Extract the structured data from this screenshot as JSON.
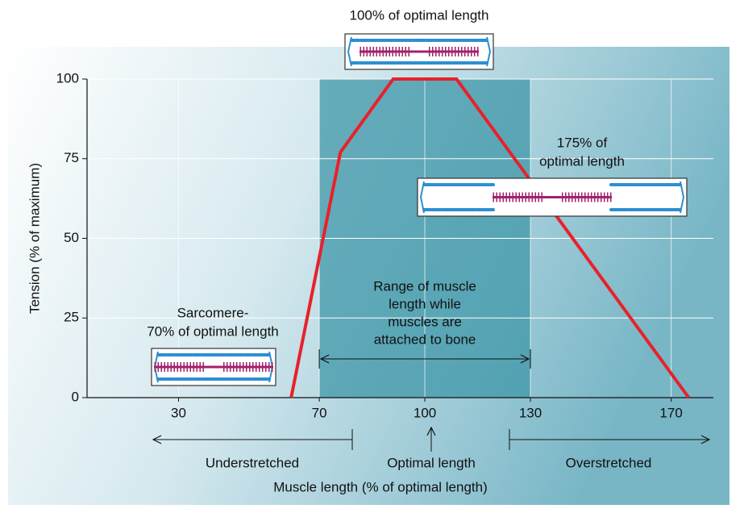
{
  "chart_data": {
    "type": "line",
    "x_label": "Muscle length (% of optimal length)",
    "y_label": "Tension (% of maximum)",
    "xlim": [
      4,
      182
    ],
    "ylim": [
      0,
      100
    ],
    "xticks": [
      30,
      70,
      100,
      130,
      170
    ],
    "yticks": [
      0,
      25,
      50,
      75,
      100
    ],
    "grid": true,
    "x": [
      62,
      76,
      91,
      109,
      175
    ],
    "values": [
      0,
      77,
      100,
      100,
      0
    ],
    "color": "#e8212b",
    "shaded_range": [
      70,
      130
    ],
    "shaded_color": "#3f97a8",
    "annotations": [
      {
        "lines": [
          "100% of optimal length"
        ]
      },
      {
        "lines": [
          "175% of",
          "optimal length"
        ]
      },
      {
        "lines": [
          "Sarcomere-",
          "70% of optimal length"
        ]
      },
      {
        "lines": [
          "Range of muscle",
          "length while",
          "muscles are",
          "attached to bone"
        ]
      }
    ],
    "regions": [
      "Understretched",
      "Optimal length",
      "Overstretched"
    ]
  }
}
